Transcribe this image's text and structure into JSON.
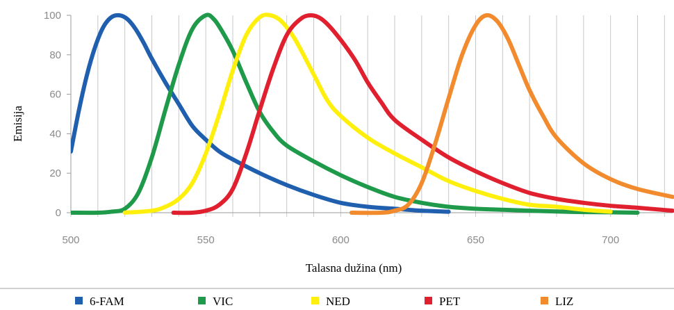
{
  "chart_data": {
    "type": "line",
    "title": "",
    "xlabel": "Talasna dužina (nm)",
    "ylabel": "Emisija",
    "xlim": [
      500,
      723
    ],
    "ylim": [
      0,
      100
    ],
    "x_ticks": [
      500,
      550,
      600,
      650,
      700
    ],
    "y_ticks": [
      0,
      20,
      40,
      60,
      80,
      100
    ],
    "grid": "vertical gridlines every 10 nm",
    "legend_position": "bottom",
    "series": [
      {
        "name": "6-FAM",
        "color": "#1f5fae",
        "x": [
          500,
          503,
          506,
          509,
          512,
          515,
          518,
          521,
          524,
          527,
          530,
          535,
          540,
          545,
          550,
          555,
          560,
          570,
          580,
          590,
          600,
          610,
          620,
          630,
          640
        ],
        "y": [
          31,
          52,
          70,
          84,
          94,
          99,
          100,
          98,
          93,
          86,
          78,
          66,
          55,
          44,
          37,
          31,
          27,
          20,
          14,
          9,
          5,
          3,
          2,
          1,
          0.5
        ]
      },
      {
        "name": "VIC",
        "color": "#1f9a4a",
        "x": [
          500,
          510,
          515,
          520,
          525,
          530,
          535,
          540,
          545,
          550,
          553,
          556,
          560,
          565,
          570,
          575,
          580,
          590,
          600,
          610,
          620,
          630,
          640,
          650,
          660,
          670,
          680,
          690,
          700,
          710
        ],
        "y": [
          0,
          0,
          0.5,
          2,
          10,
          28,
          52,
          75,
          93,
          100,
          98,
          92,
          82,
          66,
          51,
          41,
          34,
          26,
          19,
          13,
          8,
          5,
          3,
          2,
          1.5,
          1,
          0.6,
          0.3,
          0.2,
          0
        ],
        "x_end": 710
      },
      {
        "name": "NED",
        "color": "#ffef0c",
        "x": [
          520,
          530,
          535,
          540,
          545,
          550,
          555,
          560,
          565,
          570,
          574,
          578,
          583,
          590,
          595,
          600,
          610,
          620,
          630,
          640,
          650,
          660,
          670,
          680,
          690,
          700
        ],
        "y": [
          0,
          1,
          3,
          7,
          15,
          30,
          50,
          72,
          90,
          99,
          100,
          97,
          88,
          70,
          57,
          49,
          38,
          30,
          23,
          16,
          11,
          7,
          4,
          3,
          1.5,
          0.5
        ]
      },
      {
        "name": "PET",
        "color": "#e0202e",
        "x": [
          538,
          545,
          550,
          555,
          560,
          565,
          570,
          575,
          580,
          585,
          589,
          593,
          598,
          605,
          610,
          615,
          620,
          630,
          640,
          650,
          660,
          670,
          680,
          690,
          700,
          710,
          723
        ],
        "y": [
          0,
          0,
          1,
          4,
          12,
          30,
          52,
          73,
          90,
          98,
          100,
          98,
          91,
          78,
          66,
          56,
          47,
          37,
          28,
          21,
          15,
          10,
          7,
          5,
          3.5,
          2.5,
          1
        ]
      },
      {
        "name": "LIZ",
        "color": "#f28a2e",
        "x": [
          604,
          615,
          620,
          625,
          630,
          635,
          640,
          645,
          650,
          654,
          658,
          662,
          666,
          670,
          675,
          680,
          690,
          700,
          710,
          723
        ],
        "y": [
          0,
          0,
          1,
          4,
          15,
          35,
          58,
          80,
          95,
          100,
          97,
          88,
          75,
          62,
          49,
          38,
          25,
          17,
          12,
          8
        ]
      }
    ]
  }
}
